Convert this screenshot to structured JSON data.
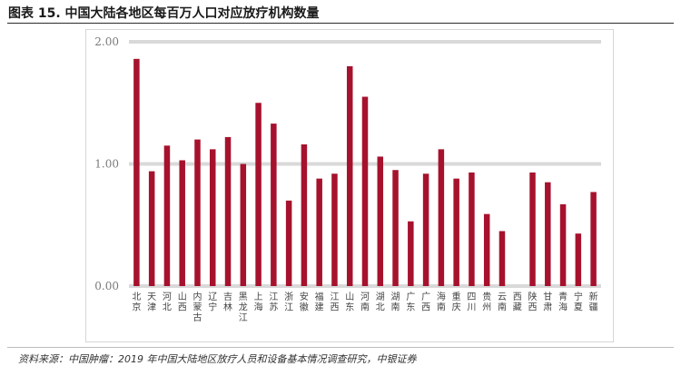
{
  "title": "图表 15. 中国大陆各地区每百万人口对应放疗机构数量",
  "source": "资料来源：中国肿瘤：2019 年中国大陆地区放疗人员和设备基本情况调查研究，中银证券",
  "chart_data": {
    "type": "bar",
    "categories": [
      "北京",
      "天津",
      "河北",
      "山西",
      "内蒙古",
      "辽宁",
      "吉林",
      "黑龙江",
      "上海",
      "江苏",
      "浙江",
      "安徽",
      "福建",
      "江西",
      "山东",
      "河南",
      "湖北",
      "湖南",
      "广东",
      "广西",
      "海南",
      "重庆",
      "四川",
      "贵州",
      "云南",
      "西藏",
      "陕西",
      "甘肃",
      "青海",
      "宁夏",
      "新疆"
    ],
    "values": [
      1.86,
      0.94,
      1.15,
      1.03,
      1.2,
      1.12,
      1.22,
      1.0,
      1.5,
      1.33,
      0.7,
      1.16,
      0.88,
      0.92,
      1.8,
      1.55,
      1.06,
      0.95,
      0.53,
      0.92,
      1.12,
      0.88,
      0.93,
      0.59,
      0.45,
      0.0,
      0.93,
      0.85,
      0.67,
      0.43,
      0.77
    ],
    "yticks": [
      "0.00",
      "1.00",
      "2.00"
    ],
    "ylim": [
      0,
      2.0
    ],
    "grid": true,
    "legend": "none",
    "bar_color": "#A6122D",
    "grid_color": "#d9d9d9"
  }
}
